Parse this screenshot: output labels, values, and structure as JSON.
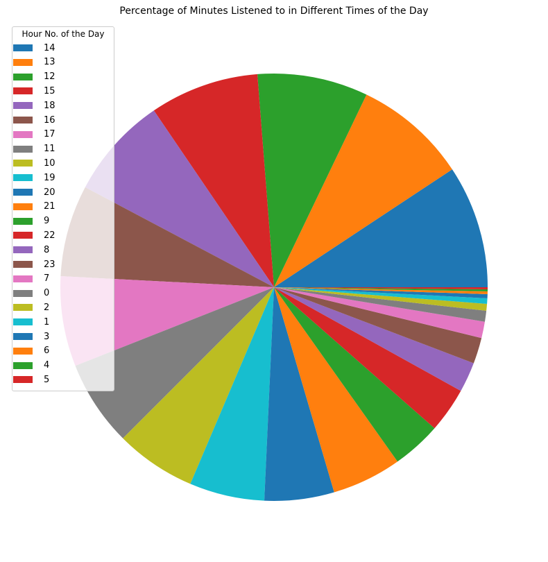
{
  "chart_data": {
    "type": "pie",
    "title": "Percentage of Minutes Listened to in Different Times of the Day",
    "legend_title": "Hour No. of the Day",
    "legend_position": "upper-left",
    "start_angle_deg": 0,
    "direction": "counterclockwise",
    "slices": [
      {
        "label": "14",
        "value": 9.0,
        "color": "#1f77b4"
      },
      {
        "label": "13",
        "value": 8.3,
        "color": "#ff7f0e"
      },
      {
        "label": "12",
        "value": 8.1,
        "color": "#2ca02c"
      },
      {
        "label": "15",
        "value": 8.0,
        "color": "#d62728"
      },
      {
        "label": "18",
        "value": 7.5,
        "color": "#9467bd"
      },
      {
        "label": "16",
        "value": 6.7,
        "color": "#8c564b"
      },
      {
        "label": "17",
        "value": 6.6,
        "color": "#e377c2"
      },
      {
        "label": "11",
        "value": 6.3,
        "color": "#7f7f7f"
      },
      {
        "label": "10",
        "value": 5.9,
        "color": "#bcbd22"
      },
      {
        "label": "19",
        "value": 5.5,
        "color": "#17becf"
      },
      {
        "label": "20",
        "value": 5.1,
        "color": "#1f77b4"
      },
      {
        "label": "21",
        "value": 5.1,
        "color": "#ff7f0e"
      },
      {
        "label": "9",
        "value": 3.6,
        "color": "#2ca02c"
      },
      {
        "label": "22",
        "value": 3.3,
        "color": "#d62728"
      },
      {
        "label": "8",
        "value": 2.2,
        "color": "#9467bd"
      },
      {
        "label": "23",
        "value": 1.9,
        "color": "#8c564b"
      },
      {
        "label": "7",
        "value": 1.2,
        "color": "#e377c2"
      },
      {
        "label": "0",
        "value": 0.8,
        "color": "#7f7f7f"
      },
      {
        "label": "2",
        "value": 0.5,
        "color": "#bcbd22"
      },
      {
        "label": "1",
        "value": 0.4,
        "color": "#17becf"
      },
      {
        "label": "3",
        "value": 0.3,
        "color": "#1f77b4"
      },
      {
        "label": "6",
        "value": 0.2,
        "color": "#ff7f0e"
      },
      {
        "label": "4",
        "value": 0.15,
        "color": "#2ca02c"
      },
      {
        "label": "5",
        "value": 0.15,
        "color": "#d62728"
      }
    ]
  }
}
